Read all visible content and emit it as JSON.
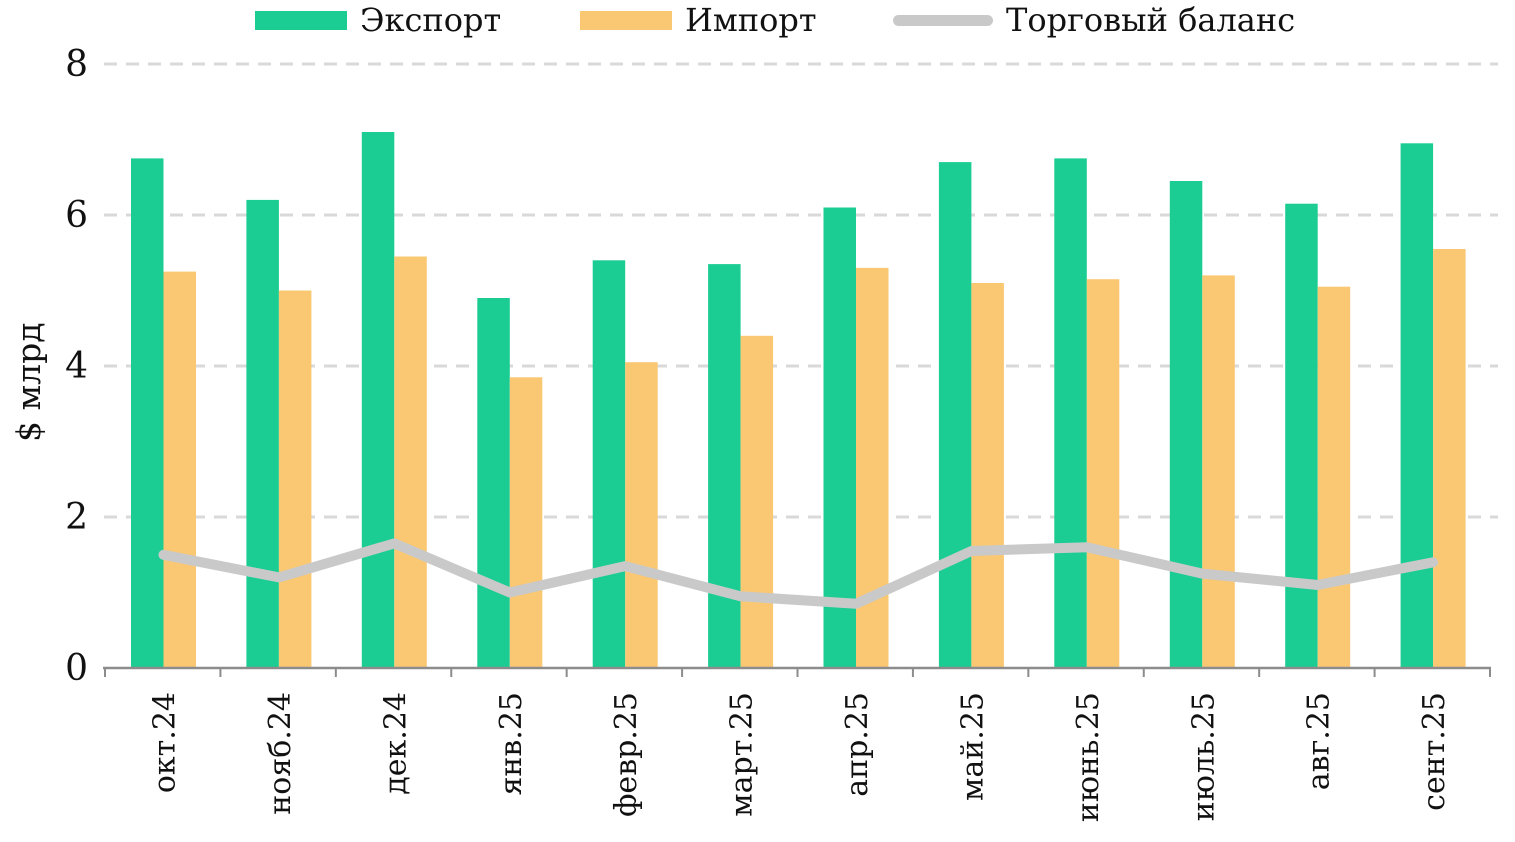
{
  "legend": {
    "items": [
      {
        "id": "export",
        "label": "Экспорт",
        "swatch": "rect"
      },
      {
        "id": "import",
        "label": "Импорт",
        "swatch": "rect"
      },
      {
        "id": "balance",
        "label": "Торговый баланс",
        "swatch": "line"
      }
    ]
  },
  "axes": {
    "y_title": "$ млрд",
    "y_tick_labels": [
      "0",
      "2",
      "4",
      "6",
      "8"
    ]
  },
  "colors": {
    "export": "#1bcd92",
    "import": "#fac873",
    "balance": "#c9c9c9",
    "gridline": "#d9d9d9",
    "axis": "#8c8c8c",
    "text": "#111111"
  },
  "chart_data": {
    "type": "bar",
    "subtype": "grouped bars with overlay line",
    "title": "",
    "xlabel": "",
    "ylabel": "$ млрд",
    "ylim": [
      0,
      8
    ],
    "yticks": [
      0,
      2,
      4,
      6,
      8
    ],
    "grid": "horizontal dashed",
    "legend_position": "top",
    "categories": [
      "окт.24",
      "нояб.24",
      "дек.24",
      "янв.25",
      "февр.25",
      "март.25",
      "апр.25",
      "май.25",
      "июнь.25",
      "июль.25",
      "авг.25",
      "сент.25"
    ],
    "series": [
      {
        "name": "Экспорт",
        "type": "bar",
        "color": "#1bcd92",
        "values": [
          6.75,
          6.2,
          7.1,
          4.9,
          5.4,
          5.35,
          6.1,
          6.7,
          6.75,
          6.45,
          6.15,
          6.95
        ]
      },
      {
        "name": "Импорт",
        "type": "bar",
        "color": "#fac873",
        "values": [
          5.25,
          5.0,
          5.45,
          3.85,
          4.05,
          4.4,
          5.3,
          5.1,
          5.15,
          5.2,
          5.05,
          5.55
        ]
      },
      {
        "name": "Торговый баланс",
        "type": "line",
        "color": "#c9c9c9",
        "values": [
          1.5,
          1.2,
          1.65,
          1.0,
          1.35,
          0.95,
          0.85,
          1.55,
          1.6,
          1.25,
          1.1,
          1.4
        ]
      }
    ]
  }
}
